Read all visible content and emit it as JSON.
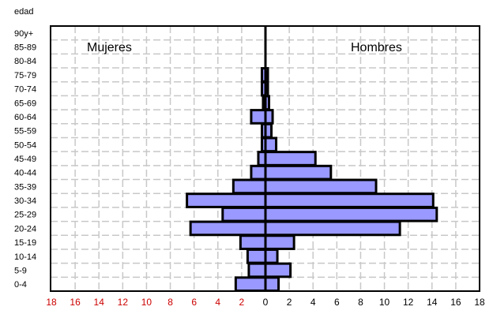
{
  "chart_data": {
    "type": "bar",
    "orientation": "horizontal-population-pyramid",
    "ylabel": "edad",
    "categories": [
      "0-4",
      "5-9",
      "10-14",
      "15-19",
      "20-24",
      "25-29",
      "30-34",
      "35-39",
      "40-44",
      "45-49",
      "50-54",
      "55-59",
      "60-64",
      "65-69",
      "70-74",
      "75-79",
      "80-84",
      "85-89",
      "90y+"
    ],
    "series": [
      {
        "name": "Mujeres",
        "values": [
          2.5,
          1.4,
          1.5,
          2.1,
          6.3,
          3.6,
          6.6,
          2.7,
          1.2,
          0.6,
          0.3,
          0.3,
          1.2,
          0.2,
          0.3,
          0.3,
          0,
          0,
          0
        ]
      },
      {
        "name": "Hombres",
        "values": [
          1.1,
          2.1,
          1.0,
          2.4,
          11.3,
          14.4,
          14.1,
          9.3,
          5.5,
          4.2,
          0.9,
          0.5,
          0.6,
          0.3,
          0.2,
          0.2,
          0,
          0,
          0
        ]
      }
    ],
    "x_ticks": [
      "18",
      "16",
      "14",
      "12",
      "10",
      "8",
      "6",
      "4",
      "2",
      "0",
      "2",
      "4",
      "6",
      "8",
      "10",
      "12",
      "14",
      "16",
      "18"
    ],
    "xlim": [
      -18,
      18
    ],
    "colors": {
      "bar_fill": "#9999ff",
      "bar_stroke": "#000000",
      "left_ticks": "#cc0000",
      "right_ticks": "#000000",
      "grid": "#c8c8c8"
    },
    "grid": true
  }
}
